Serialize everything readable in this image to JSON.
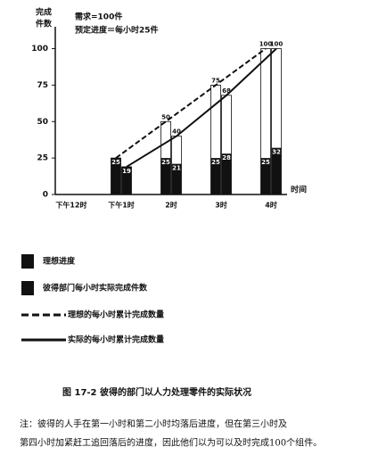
{
  "chart_data": {
    "type": "bar",
    "y_label": [
      "完成",
      "件数"
    ],
    "annotations": [
      "需求=100件",
      "预定进度＝每小时25件"
    ],
    "x_label": "时间",
    "categories": [
      "下午12时",
      "下午1时",
      "2时",
      "3时",
      "4时"
    ],
    "ylim": [
      0,
      115
    ],
    "yticks": [
      0,
      25,
      50,
      75,
      100
    ],
    "series": [
      {
        "name": "理想进度",
        "color": "#111111",
        "values": [
          null,
          25,
          25,
          25,
          25
        ]
      },
      {
        "name": "彼得部门每小时实际完成件数",
        "color": "#111111",
        "values": [
          null,
          19,
          21,
          28,
          32
        ]
      }
    ],
    "lines": [
      {
        "type": "line",
        "name": "理想的每小时累计完成数量",
        "color": "#111111",
        "dashed": true,
        "values": [
          null,
          25,
          50,
          75,
          100
        ]
      },
      {
        "type": "line",
        "name": "实际的每小时累计完成数量",
        "color": "#111111",
        "dashed": false,
        "values": [
          null,
          19,
          40,
          68,
          100
        ]
      }
    ],
    "caption": "图 17-2    彼得的部门以人力处理零件的实际状况",
    "note": [
      "注：彼得的人手在第一小时和第二小时均落后进度，但在第三小时及",
      "第四小时加紧赶工追回落后的进度，因此他们以为可以及时完成100个组件。"
    ]
  }
}
